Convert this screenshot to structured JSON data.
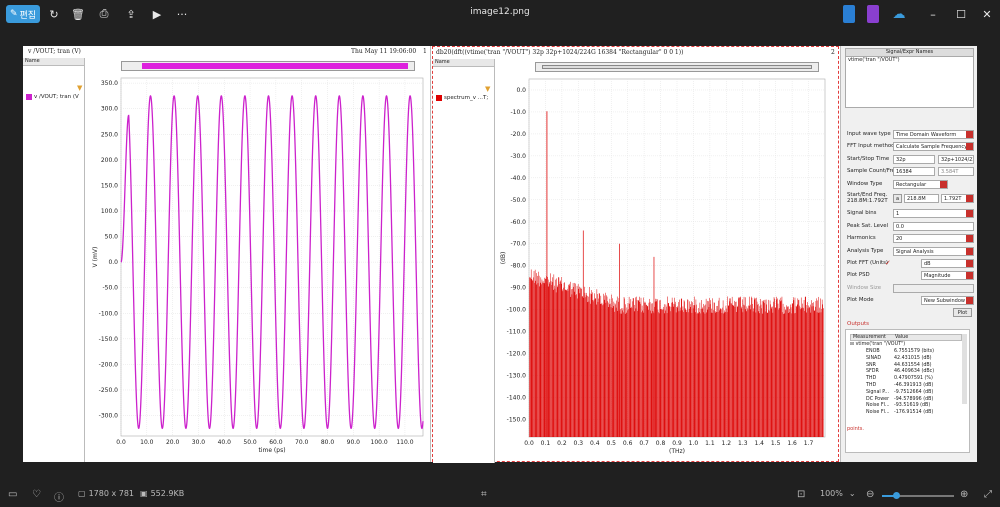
{
  "window": {
    "title": "image12.png",
    "edit_label": "편집",
    "more_label": "···"
  },
  "status": {
    "dimensions": "1780 x 781",
    "filesize": "552.9KB",
    "zoom": "100%"
  },
  "pane1": {
    "title": "v /VOUT; tran (V)",
    "date": "Thu May 11 19:06:00",
    "index": "1",
    "name_header": "Name",
    "legend": "v /VOUT; tran (V",
    "ylabel": "V (mV)",
    "xlabel": "time (ps)"
  },
  "pane2": {
    "title": "db20(dft((vtime('tran \"/VOUT\")  32p 32p+1024/224G 16384 \"Rectangular\" 0 0 1))",
    "index": "2",
    "name_header": "Name",
    "legend": "spectrum_v ...T;",
    "ylabel": "(dB)",
    "xlabel": "(THz)"
  },
  "chart_data": [
    {
      "type": "line",
      "title": "v /VOUT; tran (V)",
      "xlabel": "time (ps)",
      "ylabel": "V (mV)",
      "xlim": [
        0,
        117
      ],
      "ylim": [
        -340,
        360
      ],
      "xticks": [
        0.0,
        10.0,
        20.0,
        30.0,
        40.0,
        50.0,
        60.0,
        70.0,
        80.0,
        90.0,
        100.0,
        110.0
      ],
      "yticks": [
        -300.0,
        -250.0,
        -200.0,
        -150.0,
        -100.0,
        -50.0,
        0.0,
        50.0,
        100.0,
        150.0,
        200.0,
        250.0,
        300.0,
        350.0
      ],
      "series": [
        {
          "name": "v /VOUT; tran (V",
          "color": "#cc22cc",
          "amplitude_mv": 325,
          "period_ps": 9.143,
          "start_ps": 0,
          "end_ps": 117
        }
      ],
      "grid": true
    },
    {
      "type": "bar",
      "title": "db20(dft((vtime('tran \"/VOUT\")  32p 32p+1024/224G 16384 \"Rectangular\" 0 0 1))",
      "xlabel": "(THz)",
      "ylabel": "(dB)",
      "xlim": [
        0,
        1.8
      ],
      "ylim": [
        -158,
        5
      ],
      "xticks": [
        0.0,
        0.1,
        0.2,
        0.3,
        0.4,
        0.5,
        0.6,
        0.7,
        0.8,
        0.9,
        1.0,
        1.1,
        1.2,
        1.3,
        1.4,
        1.5,
        1.6,
        1.7
      ],
      "yticks": [
        0.0,
        -10.0,
        -20.0,
        -30.0,
        -40.0,
        -50.0,
        -60.0,
        -70.0,
        -80.0,
        -90.0,
        -100.0,
        -110.0,
        -120.0,
        -130.0,
        -140.0,
        -150.0
      ],
      "series": [
        {
          "name": "spectrum_v ...T;",
          "color": "#dd0000",
          "fundamental_thz": 0.109,
          "fundamental_db": -9.7
        }
      ],
      "grid": true
    }
  ],
  "right_panel": {
    "signal_header": "Signal/Expr Names",
    "signal_value": "vtime('tran \"/VOUT\")",
    "input_wave_type_label": "Input wave type",
    "input_wave_type": "Time Domain Waveform",
    "fft_input_label": "FFT Input method",
    "fft_input": "Calculate Sample Frequency",
    "start_stop_label": "Start/Stop Time",
    "start_time": "32p",
    "stop_time": "32p+1024/224",
    "sample_count_label": "Sample Count/Freq",
    "sample_count": "16384",
    "sample_freq": "3.584T",
    "window_type_label": "Window Type",
    "window_type": "Rectangular",
    "start_end_freq_label": "Start/End Freq.",
    "start_end_freq_sub": "218.8M:1.792T",
    "start_freq": "218.8M",
    "end_freq": "1.792T",
    "signal_bins_label": "Signal bins",
    "signal_bins": "1",
    "peak_sat_label": "Peak Sat. Level",
    "peak_sat": "0.0",
    "harmonics_label": "Harmonics",
    "harmonics": "20",
    "analysis_type_label": "Analysis Type",
    "analysis_type": "Signal Analysis",
    "plot_fft_label": "Plot FFT (Units)",
    "plot_fft_units": "dB",
    "plot_psd_label": "Plot PSD",
    "plot_psd_units": "Magnitude",
    "window_size_label": "Window Size",
    "plot_mode_label": "Plot Mode",
    "plot_mode": "New Subwindow",
    "plot_button": "Plot",
    "outputs_label": "Outputs",
    "out_col1": "Measurement",
    "out_col2": "Value",
    "out_root": "vtime('tran \"/VOUT\")",
    "outputs": [
      {
        "name": "ENOB",
        "value": "6.7551579 (bits)"
      },
      {
        "name": "SINAD",
        "value": "42.431015 (dB)"
      },
      {
        "name": "SNR",
        "value": "44.631554 (dB)"
      },
      {
        "name": "SFDR",
        "value": "46.409634 (dBc)"
      },
      {
        "name": "THD",
        "value": "0.47907591 (%)"
      },
      {
        "name": "THD",
        "value": "-46.391913 (dB)"
      },
      {
        "name": "Signal P...",
        "value": "-9.7512664 (dB)"
      },
      {
        "name": "DC Power",
        "value": "-94.578996 (dB)"
      },
      {
        "name": "Noise Fl...",
        "value": "-93.51619 (dB)"
      },
      {
        "name": "Noise Fl...",
        "value": "-176.91514 (dB)"
      }
    ],
    "points_label": "points."
  }
}
